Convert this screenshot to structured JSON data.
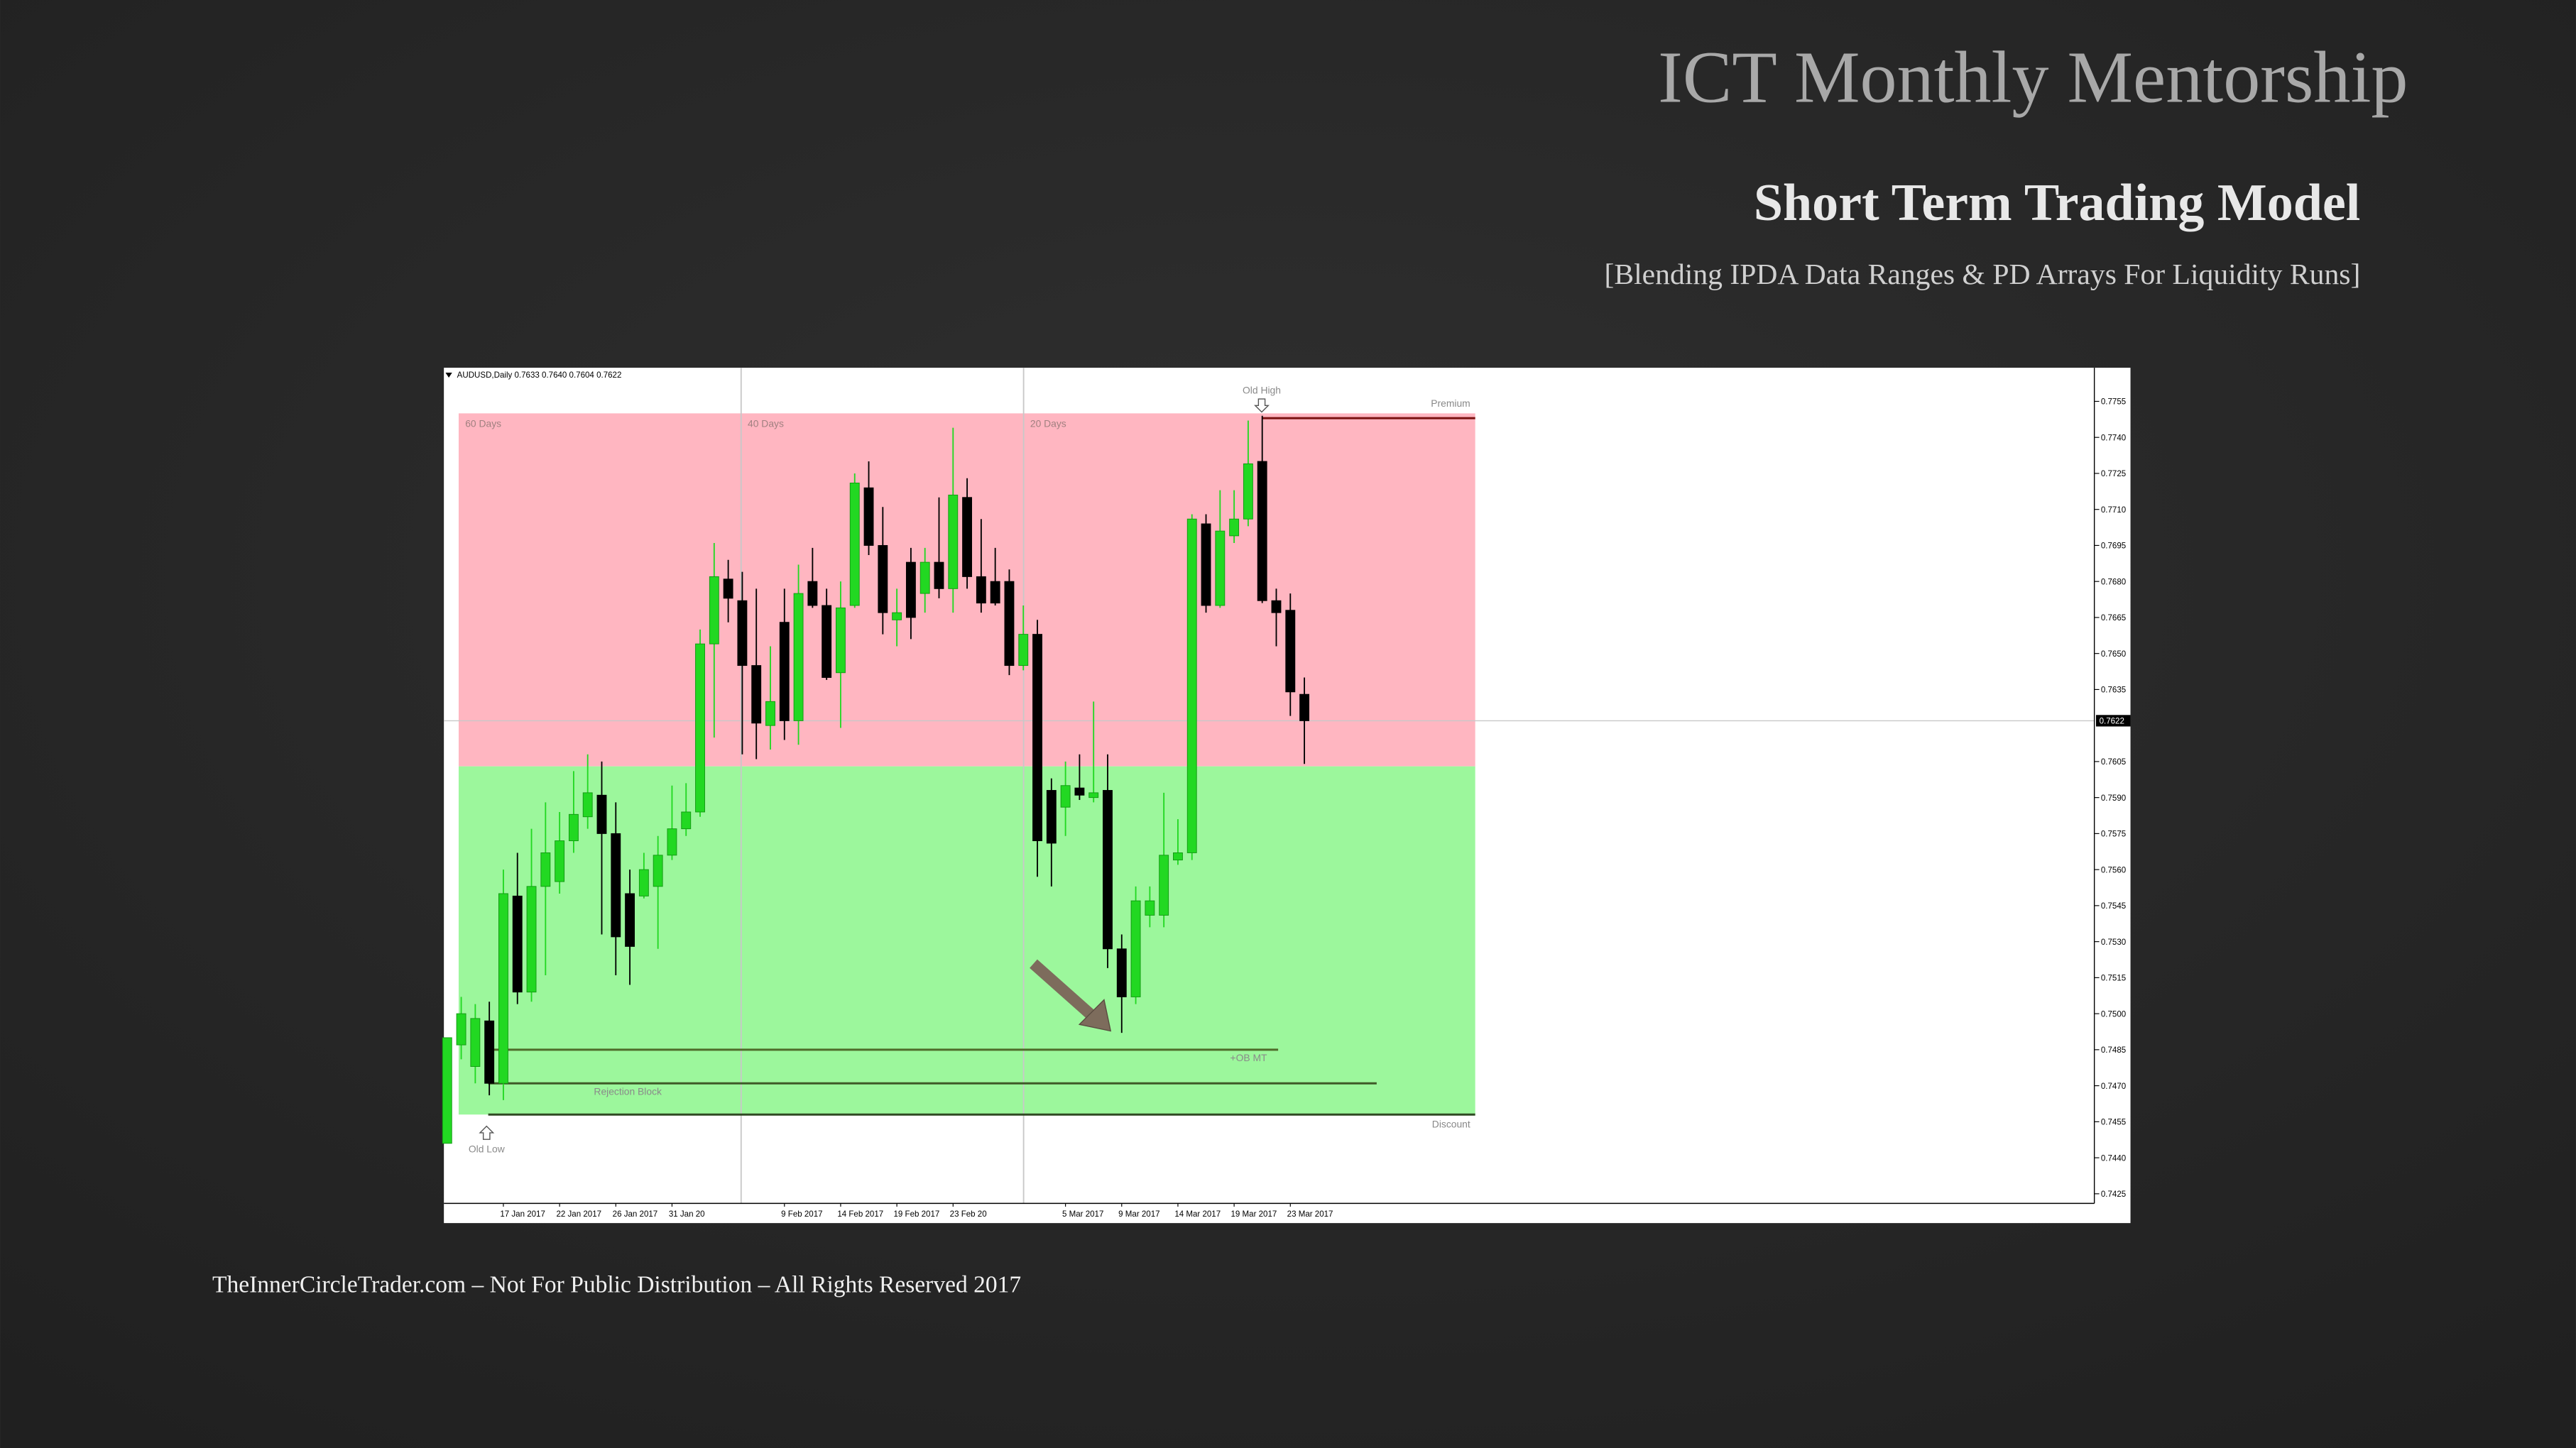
{
  "chart_data": {
    "type": "candlestick",
    "title": "ICT Monthly Mentorship",
    "subtitle": "Short Term Trading Model",
    "caption": "[Blending IPDA Data Ranges & PD Arrays For Liquidity Runs]",
    "footer": "TheInnerCircleTrader.com – Not For Public Distribution – All Rights Reserved 2017",
    "symbol_label": "AUDUSD,Daily 0.7633 0.7640 0.7604 0.7622",
    "categories": [
      null,
      null,
      null,
      null,
      "17 Jan 2017",
      null,
      null,
      null,
      "22 Jan 2017",
      null,
      null,
      null,
      "26 Jan 2017",
      null,
      null,
      null,
      "31 Jan 20",
      null,
      null,
      null,
      null,
      null,
      null,
      null,
      "9 Feb 2017",
      null,
      null,
      null,
      "14 Feb 2017",
      null,
      null,
      null,
      "19 Feb 2017",
      null,
      null,
      null,
      "23 Feb 20",
      null,
      null,
      null,
      null,
      null,
      null,
      null,
      "5 Mar 2017",
      null,
      null,
      null,
      "9 Mar 2017",
      null,
      null,
      null,
      "14 Mar 2017",
      null,
      null,
      null,
      "19 Mar 2017",
      null,
      null,
      null,
      "23 Mar 2017",
      null
    ],
    "open": [
      0.7446,
      0.7487,
      0.7478,
      0.7497,
      0.7471,
      0.7549,
      0.7509,
      0.7553,
      0.7555,
      0.7572,
      0.7582,
      0.7591,
      0.7575,
      0.755,
      0.7549,
      0.7553,
      0.7566,
      0.7577,
      0.7584,
      0.7654,
      0.7681,
      0.7672,
      0.7645,
      0.762,
      0.7663,
      0.7622,
      0.768,
      0.767,
      0.7642,
      0.767,
      0.7719,
      0.7695,
      0.7664,
      0.7688,
      0.7675,
      0.7688,
      0.7677,
      0.7715,
      0.7682,
      0.768,
      0.768,
      0.7645,
      0.7658,
      0.7593,
      0.7586,
      0.7594,
      0.759,
      0.7593,
      0.7527,
      0.7507,
      0.7541,
      0.7541,
      0.7564,
      0.7567,
      0.7704,
      0.767,
      0.7699,
      0.7706,
      0.773,
      0.7672,
      0.7668,
      0.7633
    ],
    "high": [
      0.749,
      0.7507,
      0.7504,
      0.7505,
      0.756,
      0.7567,
      0.7577,
      0.7588,
      0.7584,
      0.7601,
      0.7608,
      0.7605,
      0.7588,
      0.756,
      0.7567,
      0.7574,
      0.7595,
      0.7596,
      0.766,
      0.7696,
      0.7689,
      0.7684,
      0.7677,
      0.7653,
      0.7677,
      0.7687,
      0.7694,
      0.7677,
      0.768,
      0.7725,
      0.773,
      0.7711,
      0.7677,
      0.7694,
      0.7694,
      0.7715,
      0.7744,
      0.7723,
      0.7706,
      0.7694,
      0.7685,
      0.767,
      0.7664,
      0.7598,
      0.7605,
      0.7608,
      0.763,
      0.7608,
      0.7533,
      0.7553,
      0.7553,
      0.7592,
      0.7581,
      0.7708,
      0.7708,
      0.7718,
      0.7718,
      0.7747,
      0.7749,
      0.7677,
      0.7675,
      0.764
    ],
    "low": [
      0.7446,
      0.7481,
      0.7471,
      0.7466,
      0.7464,
      0.7504,
      0.7505,
      0.7516,
      0.755,
      0.7567,
      0.7577,
      0.7533,
      0.7516,
      0.7512,
      0.7548,
      0.7527,
      0.7564,
      0.7574,
      0.7582,
      0.7615,
      0.7663,
      0.7608,
      0.7606,
      0.761,
      0.7614,
      0.7612,
      0.7669,
      0.7639,
      0.7619,
      0.7669,
      0.7691,
      0.7658,
      0.7653,
      0.7656,
      0.7667,
      0.7673,
      0.7667,
      0.7677,
      0.7667,
      0.767,
      0.7641,
      0.7643,
      0.7557,
      0.7553,
      0.7574,
      0.7589,
      0.7588,
      0.7519,
      0.7492,
      0.7504,
      0.7536,
      0.7536,
      0.7562,
      0.7564,
      0.7667,
      0.7669,
      0.7696,
      0.7703,
      0.7671,
      0.7653,
      0.7624,
      0.7604
    ],
    "close": [
      0.749,
      0.75,
      0.7498,
      0.7471,
      0.755,
      0.7509,
      0.7553,
      0.7567,
      0.7572,
      0.7583,
      0.7592,
      0.7575,
      0.7532,
      0.7528,
      0.756,
      0.7566,
      0.7577,
      0.7584,
      0.7654,
      0.7682,
      0.7673,
      0.7645,
      0.7621,
      0.763,
      0.7622,
      0.7675,
      0.767,
      0.764,
      0.7669,
      0.7721,
      0.7695,
      0.7667,
      0.7667,
      0.7665,
      0.7688,
      0.7677,
      0.7716,
      0.7682,
      0.7671,
      0.7671,
      0.7645,
      0.7658,
      0.7572,
      0.7571,
      0.7595,
      0.7591,
      0.7592,
      0.7527,
      0.7507,
      0.7547,
      0.7547,
      0.7566,
      0.7567,
      0.7706,
      0.767,
      0.7701,
      0.7706,
      0.7729,
      0.7672,
      0.7667,
      0.7634,
      0.7622
    ],
    "up_color": "#22d822",
    "down_color": "#000000",
    "ylim": [
      0.7421,
      0.7769
    ],
    "yticks": [
      0.7755,
      {
        "value": 0.774,
        "label": "0.7740"
      },
      0.7725,
      {
        "value": 0.771,
        "label": "0.7710"
      },
      0.7695,
      {
        "value": 0.768,
        "label": "0.7680"
      },
      0.7665,
      {
        "value": 0.765,
        "label": "0.7650"
      },
      0.7635,
      0.7605,
      {
        "value": 0.759,
        "label": "0.7590"
      },
      0.7575,
      {
        "value": 0.756,
        "label": "0.7560"
      },
      0.7545,
      {
        "value": 0.753,
        "label": "0.7530"
      },
      0.7515,
      {
        "value": 0.75,
        "label": "0.7500"
      },
      0.7485,
      {
        "value": 0.747,
        "label": "0.7470"
      },
      0.7455,
      {
        "value": 0.744,
        "label": "0.7440"
      },
      0.7425
    ],
    "current_price": 0.7622,
    "zones": [
      {
        "name": "Premium",
        "from": 0.7603,
        "to": 0.775,
        "color": "#ffb6c1"
      },
      {
        "name": "Discount",
        "from": 0.7458,
        "to": 0.7603,
        "color": "#9cf79c"
      }
    ],
    "levels": [
      {
        "name": "Old High",
        "value": 0.7748,
        "color": "#7a1010"
      },
      {
        "name": "+OB MT",
        "value": 0.7485,
        "color": "#4f6b2a"
      },
      {
        "name": "Rejection Block",
        "value": 0.7471,
        "color": "#3f5a28"
      },
      {
        "name": "Old Low",
        "value": 0.7458,
        "color": "#2f4a22"
      }
    ],
    "lookbacks": [
      "60 Days",
      "40 Days",
      "20 Days"
    ]
  }
}
